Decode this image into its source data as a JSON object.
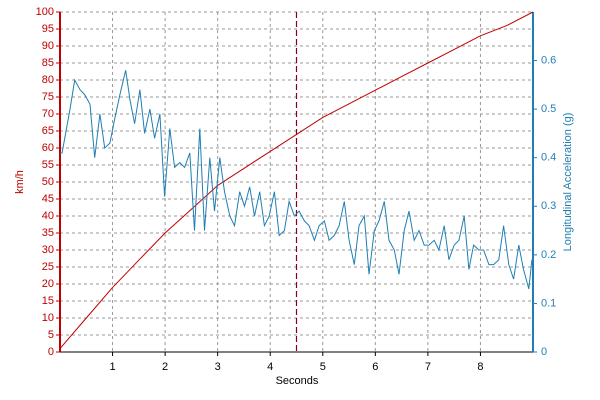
{
  "chart_data": {
    "type": "line",
    "xlabel": "Seconds",
    "ylabel": "km/h",
    "y2label": "Longitudinal Acceleration (g)",
    "xlim": [
      0,
      9
    ],
    "xticks": [
      1,
      2,
      3,
      4,
      5,
      6,
      7,
      8
    ],
    "ylim": [
      0,
      100
    ],
    "yticks": [
      0,
      5,
      10,
      15,
      20,
      25,
      30,
      35,
      40,
      45,
      50,
      55,
      60,
      65,
      70,
      75,
      80,
      85,
      90,
      95,
      100
    ],
    "y2lim": [
      0,
      0.7
    ],
    "y2ticks": [
      0,
      0.1,
      0.2,
      0.3,
      0.4,
      0.5,
      0.6
    ],
    "grid": true,
    "vline": {
      "x": 4.5,
      "color": "#800020"
    },
    "series": [
      {
        "name": "km/h",
        "color": "#c00000",
        "axis": "y",
        "x": [
          0,
          0.5,
          1,
          1.5,
          2,
          2.5,
          3,
          3.5,
          4,
          4.5,
          5,
          5.5,
          6,
          6.5,
          7,
          7.5,
          8,
          8.5,
          9
        ],
        "values": [
          1,
          10,
          19,
          27,
          35,
          42,
          49,
          54,
          59,
          64,
          69,
          73,
          77,
          81,
          85,
          89,
          93,
          96,
          100
        ]
      },
      {
        "name": "Longitudinal Acceleration (g)",
        "color": "#1f7fb4",
        "axis": "y2",
        "x": [
          0,
          0.04,
          0.19,
          0.28,
          0.38,
          0.47,
          0.57,
          0.66,
          0.76,
          0.85,
          0.95,
          1.04,
          1.14,
          1.25,
          1.33,
          1.42,
          1.52,
          1.61,
          1.71,
          1.8,
          1.9,
          1.99,
          2.09,
          2.18,
          2.28,
          2.37,
          2.47,
          2.56,
          2.66,
          2.75,
          2.85,
          2.94,
          3.04,
          3.13,
          3.23,
          3.32,
          3.42,
          3.51,
          3.61,
          3.7,
          3.8,
          3.89,
          3.98,
          4.08,
          4.17,
          4.27,
          4.36,
          4.46,
          4.55,
          4.65,
          4.74,
          4.84,
          4.93,
          5.03,
          5.12,
          5.22,
          5.31,
          5.41,
          5.5,
          5.6,
          5.69,
          5.79,
          5.88,
          5.98,
          6.07,
          6.17,
          6.26,
          6.36,
          6.45,
          6.55,
          6.64,
          6.74,
          6.83,
          6.93,
          7.02,
          7.12,
          7.21,
          7.31,
          7.4,
          7.5,
          7.59,
          7.69,
          7.78,
          7.87,
          7.97,
          8.06,
          8.16,
          8.25,
          8.35,
          8.44,
          8.54,
          8.63,
          8.73,
          8.82,
          8.92,
          8.98
        ],
        "values": [
          0.41,
          0.41,
          0.5,
          0.56,
          0.54,
          0.53,
          0.51,
          0.4,
          0.49,
          0.42,
          0.43,
          0.48,
          0.53,
          0.58,
          0.52,
          0.47,
          0.54,
          0.45,
          0.5,
          0.44,
          0.49,
          0.32,
          0.46,
          0.38,
          0.39,
          0.38,
          0.41,
          0.25,
          0.46,
          0.25,
          0.4,
          0.29,
          0.4,
          0.33,
          0.28,
          0.26,
          0.33,
          0.3,
          0.34,
          0.28,
          0.33,
          0.26,
          0.28,
          0.33,
          0.24,
          0.25,
          0.31,
          0.28,
          0.29,
          0.27,
          0.26,
          0.23,
          0.26,
          0.27,
          0.23,
          0.24,
          0.26,
          0.31,
          0.23,
          0.18,
          0.26,
          0.28,
          0.16,
          0.25,
          0.27,
          0.31,
          0.23,
          0.21,
          0.16,
          0.25,
          0.29,
          0.23,
          0.25,
          0.22,
          0.22,
          0.23,
          0.21,
          0.26,
          0.19,
          0.22,
          0.23,
          0.28,
          0.17,
          0.22,
          0.21,
          0.21,
          0.18,
          0.18,
          0.19,
          0.26,
          0.18,
          0.15,
          0.22,
          0.17,
          0.13,
          0.19
        ]
      }
    ]
  }
}
